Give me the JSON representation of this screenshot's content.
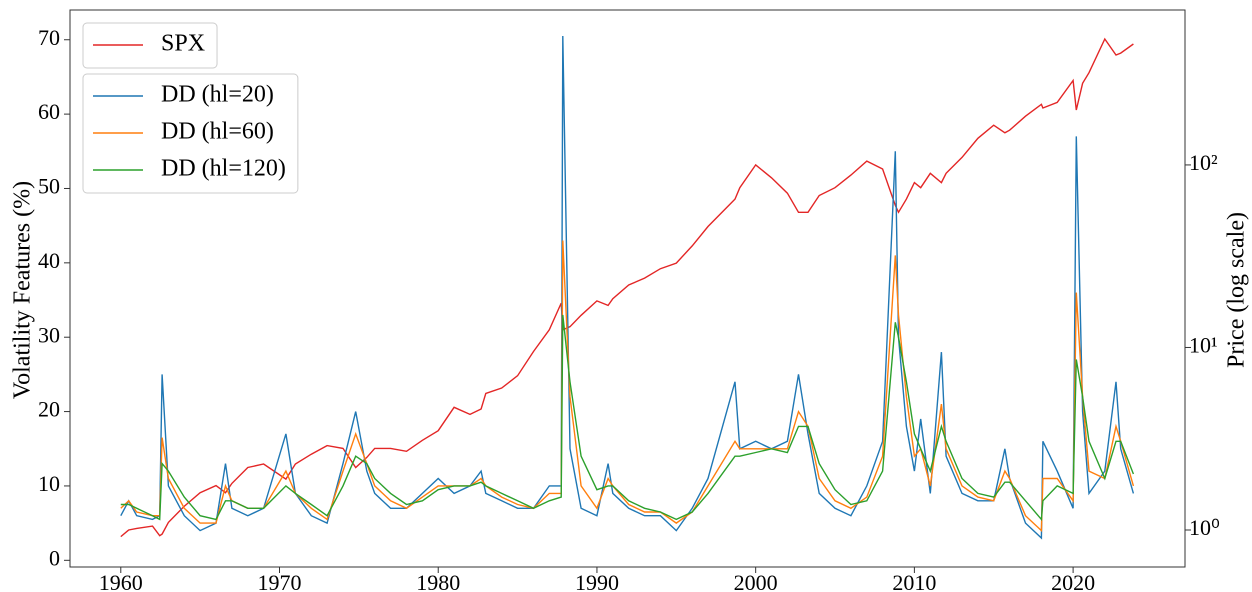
{
  "chart_data": {
    "type": "line",
    "y_label": "Volatility Features (%)",
    "y2_label": "Price (log scale)",
    "x": [
      1960,
      1960.5,
      1961,
      1962,
      1962.45,
      1962.6,
      1963,
      1964,
      1965,
      1966,
      1966.6,
      1967,
      1968,
      1969,
      1970.4,
      1971,
      1972,
      1973,
      1974,
      1974.8,
      1975.5,
      1976,
      1977,
      1978,
      1979,
      1980,
      1981,
      1982,
      1982.7,
      1983,
      1984,
      1985,
      1986,
      1987,
      1987.75,
      1987.85,
      1988.3,
      1989,
      1990,
      1990.7,
      1991,
      1992,
      1993,
      1994,
      1995,
      1996,
      1997,
      1998.7,
      1999,
      2000,
      2001,
      2002,
      2002.7,
      2003.3,
      2004,
      2005,
      2006,
      2007,
      2008,
      2008.8,
      2009,
      2009.5,
      2010,
      2010.4,
      2011,
      2011.7,
      2012,
      2013,
      2014,
      2015,
      2015.7,
      2016,
      2017,
      2018,
      2018.1,
      2019,
      2020,
      2020.2,
      2020.6,
      2021,
      2022,
      2022.7,
      2023,
      2023.8
    ],
    "series": [
      {
        "name": "SPX",
        "color": "#e32626",
        "axis": "y2",
        "values": [
          0.92,
          1.0,
          1.02,
          1.05,
          0.93,
          0.95,
          1.1,
          1.35,
          1.6,
          1.75,
          1.6,
          1.8,
          2.2,
          2.3,
          1.9,
          2.3,
          2.6,
          2.9,
          2.8,
          2.2,
          2.5,
          2.8,
          2.8,
          2.7,
          3.1,
          3.5,
          4.7,
          4.3,
          4.6,
          5.6,
          6.0,
          7.0,
          9.5,
          12.5,
          17.5,
          12.5,
          13,
          15,
          18,
          17,
          18.5,
          22,
          24,
          27,
          29,
          36,
          46,
          65,
          75,
          100,
          85,
          70,
          55,
          55,
          68,
          75,
          88,
          105,
          95,
          60,
          55,
          65,
          80,
          75,
          90,
          80,
          90,
          110,
          140,
          165,
          150,
          155,
          185,
          215,
          205,
          220,
          290,
          200,
          280,
          320,
          490,
          400,
          410,
          460
        ]
      },
      {
        "name": "DD (hl=20)",
        "color": "#1f77b4",
        "values": [
          6,
          8,
          6,
          5.5,
          6,
          25,
          10,
          6,
          4,
          5,
          13,
          7,
          6,
          7,
          17,
          9,
          6,
          5,
          13,
          20,
          12,
          9,
          7,
          7,
          9,
          11,
          9,
          10,
          12,
          9,
          8,
          7,
          7,
          10,
          10,
          70.5,
          15,
          7,
          6,
          13,
          9,
          7,
          6,
          6,
          4,
          7,
          11,
          24,
          15,
          16,
          15,
          16,
          25,
          17,
          9,
          7,
          6,
          10,
          16,
          55,
          30,
          18,
          12,
          19,
          9,
          28,
          14,
          9,
          8,
          8,
          15,
          11,
          5,
          3,
          16,
          12,
          7,
          57,
          20,
          9,
          12,
          24,
          15,
          9
        ]
      },
      {
        "name": "DD (hl=60)",
        "color": "#ff7f0e",
        "values": [
          7,
          8,
          6.5,
          6,
          6,
          16.5,
          11,
          7,
          5,
          5,
          10,
          8,
          7,
          7,
          12,
          9,
          7,
          5.5,
          12,
          17,
          13,
          10,
          8,
          7,
          8.5,
          10,
          10,
          10,
          11,
          10,
          8.5,
          7.5,
          7,
          9,
          9,
          43,
          22,
          10,
          7,
          11,
          10,
          7.5,
          6.5,
          6.5,
          5,
          6.5,
          10,
          16,
          15,
          15,
          15,
          15,
          20,
          18,
          11,
          8,
          7,
          8.5,
          14,
          41,
          33,
          22,
          14,
          15,
          10,
          21,
          15,
          10,
          8.5,
          8,
          12,
          11,
          6,
          4,
          11,
          11,
          8,
          36,
          22,
          12,
          11,
          18,
          16,
          10
        ]
      },
      {
        "name": "DD (hl=120)",
        "color": "#2ca02c",
        "values": [
          7.5,
          7.5,
          7,
          6,
          5.5,
          13,
          12,
          8.5,
          6,
          5.5,
          8,
          8,
          7,
          7,
          10,
          9,
          7.5,
          6,
          10,
          14,
          13,
          11,
          9,
          7.5,
          8,
          9.5,
          10,
          10,
          10.5,
          10,
          9,
          8,
          7,
          8,
          8.5,
          33,
          24,
          14,
          9.5,
          10,
          10,
          8,
          7,
          6.5,
          5.5,
          6.5,
          9,
          14,
          14,
          14.5,
          15,
          14.5,
          18,
          18,
          13,
          9.5,
          7.5,
          8,
          12,
          32,
          30,
          24,
          17,
          15,
          12,
          18,
          16,
          11,
          9,
          8.5,
          10.5,
          10.5,
          8,
          5.5,
          8,
          10,
          9,
          27,
          22,
          16,
          11,
          16,
          16,
          11.6
        ]
      }
    ],
    "xlim": [
      1956.8,
      2027.05
    ],
    "xticks": [
      1960,
      1970,
      1980,
      1990,
      2000,
      2010,
      2020
    ],
    "ylim": [
      -0.9,
      74.0
    ],
    "yticks": [
      0,
      10,
      20,
      30,
      40,
      50,
      60,
      70
    ],
    "y2lim": [
      0.627,
      706
    ],
    "y2log": true,
    "y2ticks": [
      {
        "value": 1,
        "label": "10⁰"
      },
      {
        "value": 10,
        "label": "10¹"
      },
      {
        "value": 100,
        "label": "10²"
      }
    ],
    "legend": "upper left"
  }
}
